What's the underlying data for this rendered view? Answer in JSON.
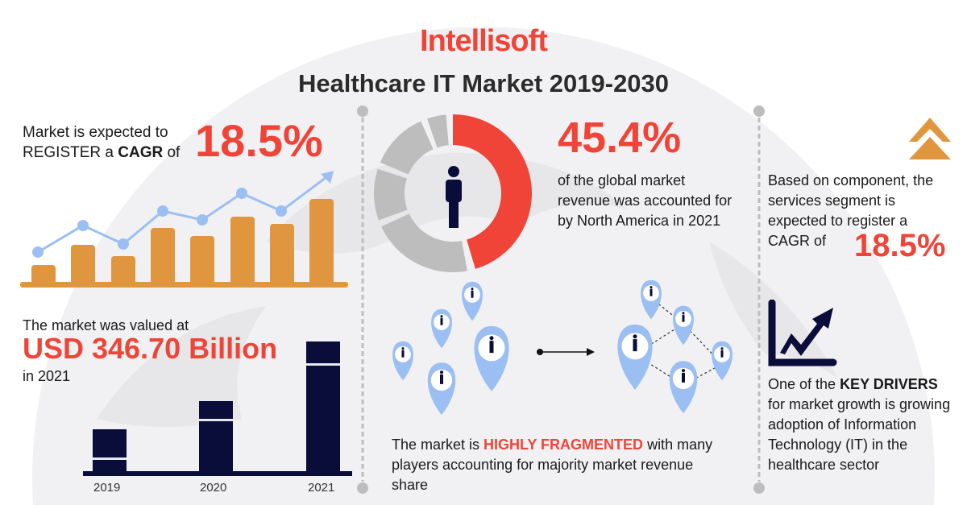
{
  "brand": {
    "logo": "Intellisoft"
  },
  "title": "Healthcare IT Market 2019-2030",
  "colors": {
    "accent_red": "#f04438",
    "orange": "#e0963f",
    "navy": "#0a0c3a",
    "light_blue": "#9bbff2",
    "grey": "#bdbdbd"
  },
  "cagr_block": {
    "line1": "Market is expected to",
    "line2_pre": "REGISTER a ",
    "line2_bold": "CAGR",
    "line2_post": " of",
    "value": "18.5%"
  },
  "valued_block": {
    "line1": "The market was valued at",
    "value": "USD 346.70 Billion",
    "line3": "in 2021",
    "years": [
      "2019",
      "2020",
      "2021"
    ]
  },
  "north_america": {
    "value": "45.4%",
    "text": "of the global market revenue was accounted for by North America in 2021",
    "share_percent": 45.4,
    "icon": "person-icon"
  },
  "fragmented": {
    "pre": "The market is ",
    "highlight": "HIGHLY FRAGMENTED",
    "post": " with many players accounting for majority market revenue share",
    "icon": "location-pin-icon"
  },
  "services": {
    "text": "Based on component, the services segment is expected to register a CAGR of",
    "value": "18.5%",
    "icon": "double-chevron-up-icon"
  },
  "drivers": {
    "pre": "One of the ",
    "bold": "KEY DRIVERS",
    "post": " for market growth is growing adoption of Information Technology (IT) in the healthcare sector",
    "icon": "growth-chart-icon"
  }
}
